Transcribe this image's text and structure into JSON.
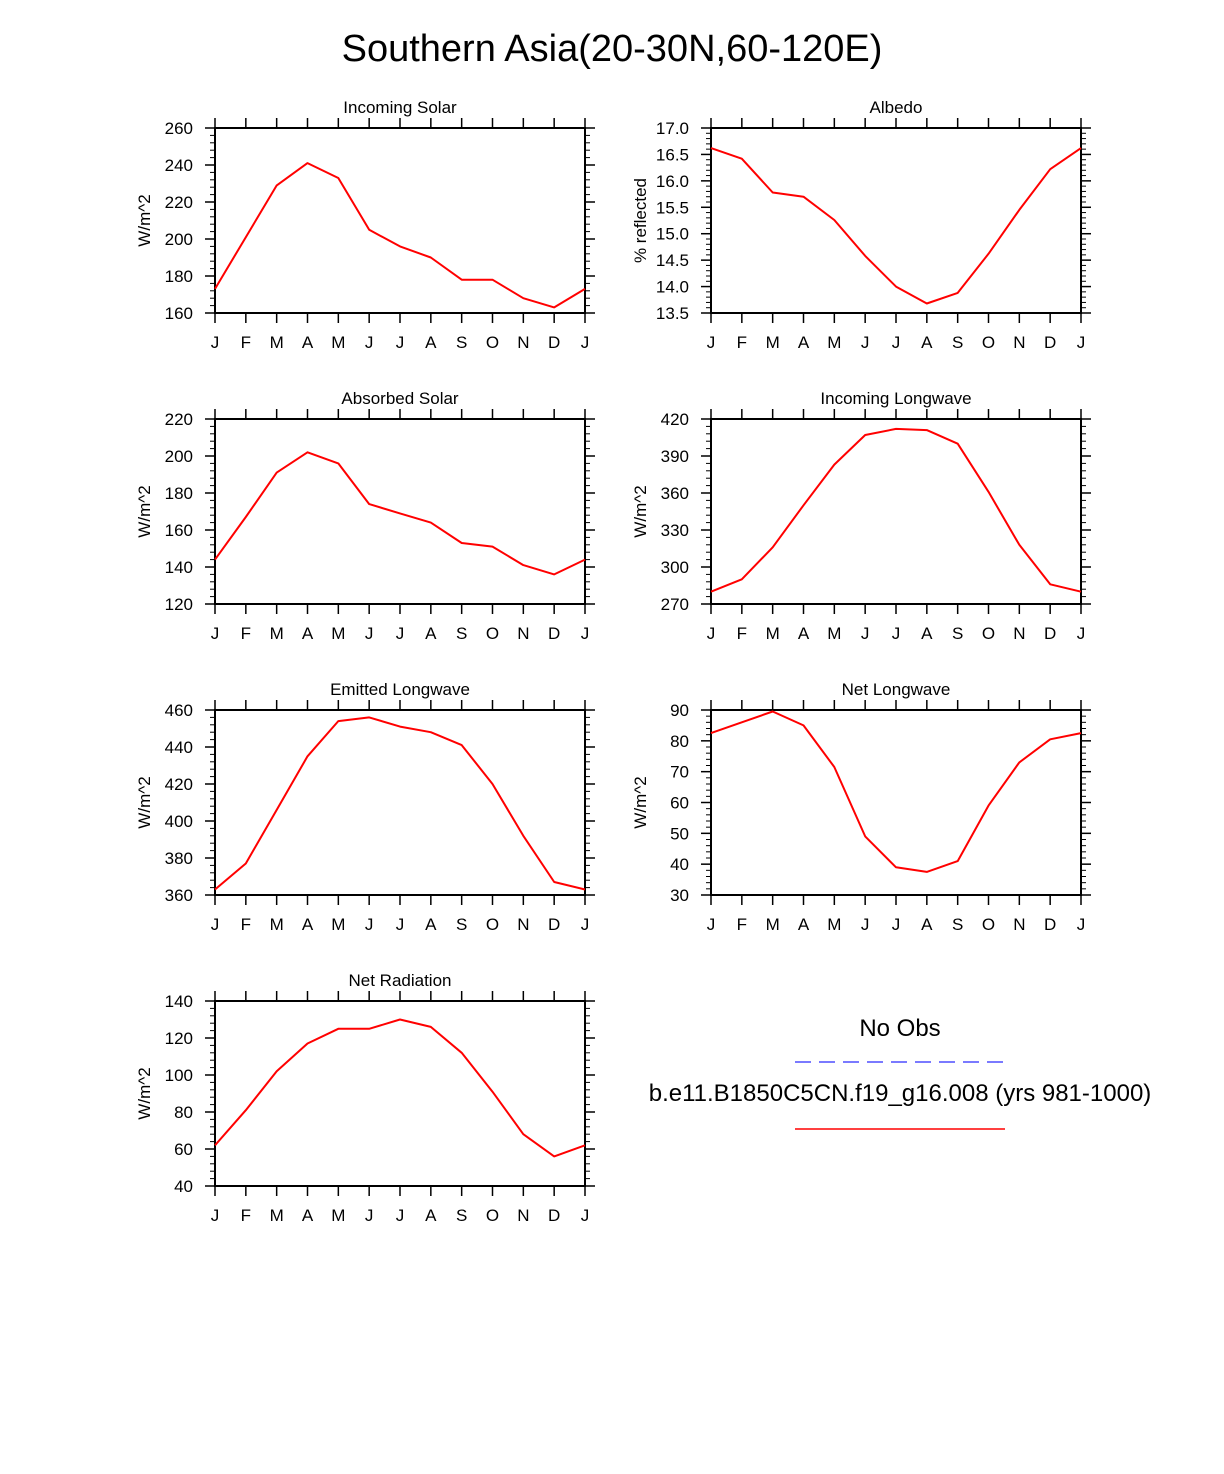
{
  "title": "Southern Asia(20-30N,60-120E)",
  "colors": {
    "model": "#ff0000",
    "obs": "#4f4fff",
    "axes": "#000000"
  },
  "legend": {
    "obs_label": "No Obs",
    "model_label": "b.e11.B1850C5CN.f19_g16.008 (yrs 981-1000)"
  },
  "chart_data": [
    {
      "type": "line",
      "title": "Incoming Solar",
      "ylabel": "W/m^2",
      "x": [
        "J",
        "F",
        "M",
        "A",
        "M",
        "J",
        "J",
        "A",
        "S",
        "O",
        "N",
        "D",
        "J"
      ],
      "ylim": [
        160,
        260
      ],
      "yticks": [
        "160",
        "180",
        "200",
        "220",
        "240",
        "260"
      ],
      "series": [
        {
          "values": [
            173,
            201,
            229,
            241,
            233,
            205,
            196,
            190,
            178,
            178,
            168,
            163,
            173
          ]
        }
      ]
    },
    {
      "type": "line",
      "title": "Albedo",
      "ylabel": "% reflected",
      "x": [
        "J",
        "F",
        "M",
        "A",
        "M",
        "J",
        "J",
        "A",
        "S",
        "O",
        "N",
        "D",
        "J"
      ],
      "ylim": [
        13.5,
        17.0
      ],
      "yticks": [
        "13.5",
        "14.0",
        "14.5",
        "15.0",
        "15.5",
        "16.0",
        "16.5",
        "17.0"
      ],
      "series": [
        {
          "values": [
            16.62,
            16.42,
            15.78,
            15.7,
            15.26,
            14.58,
            14.0,
            13.68,
            13.88,
            14.62,
            15.45,
            16.22,
            16.62
          ]
        }
      ]
    },
    {
      "type": "line",
      "title": "Absorbed Solar",
      "ylabel": "W/m^2",
      "x": [
        "J",
        "F",
        "M",
        "A",
        "M",
        "J",
        "J",
        "A",
        "S",
        "O",
        "N",
        "D",
        "J"
      ],
      "ylim": [
        120,
        220
      ],
      "yticks": [
        "120",
        "140",
        "160",
        "180",
        "200",
        "220"
      ],
      "series": [
        {
          "values": [
            144,
            167,
            191,
            202,
            196,
            174,
            169,
            164,
            153,
            151,
            141,
            136,
            144
          ]
        }
      ]
    },
    {
      "type": "line",
      "title": "Incoming Longwave",
      "ylabel": "W/m^2",
      "x": [
        "J",
        "F",
        "M",
        "A",
        "M",
        "J",
        "J",
        "A",
        "S",
        "O",
        "N",
        "D",
        "J"
      ],
      "ylim": [
        270,
        420
      ],
      "yticks": [
        "270",
        "300",
        "330",
        "360",
        "390",
        "420"
      ],
      "series": [
        {
          "values": [
            280,
            290,
            316,
            350,
            383,
            407,
            412,
            411,
            400,
            361,
            318,
            286,
            280
          ]
        }
      ]
    },
    {
      "type": "line",
      "title": "Emitted Longwave",
      "ylabel": "W/m^2",
      "x": [
        "J",
        "F",
        "M",
        "A",
        "M",
        "J",
        "J",
        "A",
        "S",
        "O",
        "N",
        "D",
        "J"
      ],
      "ylim": [
        360,
        460
      ],
      "yticks": [
        "360",
        "380",
        "400",
        "420",
        "440",
        "460"
      ],
      "series": [
        {
          "values": [
            363,
            377,
            406,
            435,
            454,
            456,
            451,
            448,
            441,
            420,
            392,
            367,
            363
          ]
        }
      ]
    },
    {
      "type": "line",
      "title": "Net Longwave",
      "ylabel": "W/m^2",
      "x": [
        "J",
        "F",
        "M",
        "A",
        "M",
        "J",
        "J",
        "A",
        "S",
        "O",
        "N",
        "D",
        "J"
      ],
      "ylim": [
        30,
        90
      ],
      "yticks": [
        "30",
        "40",
        "50",
        "60",
        "70",
        "80",
        "90"
      ],
      "series": [
        {
          "values": [
            82.5,
            86,
            89.5,
            85,
            71.5,
            49,
            39,
            37.5,
            41,
            59,
            73,
            80.5,
            82.5
          ]
        }
      ]
    },
    {
      "type": "line",
      "title": "Net Radiation",
      "ylabel": "W/m^2",
      "x": [
        "J",
        "F",
        "M",
        "A",
        "M",
        "J",
        "J",
        "A",
        "S",
        "O",
        "N",
        "D",
        "J"
      ],
      "ylim": [
        40,
        140
      ],
      "yticks": [
        "40",
        "60",
        "80",
        "100",
        "120",
        "140"
      ],
      "series": [
        {
          "values": [
            62,
            81,
            102,
            117,
            125,
            125,
            130,
            126,
            112,
            91,
            68,
            56,
            62
          ]
        }
      ]
    }
  ]
}
